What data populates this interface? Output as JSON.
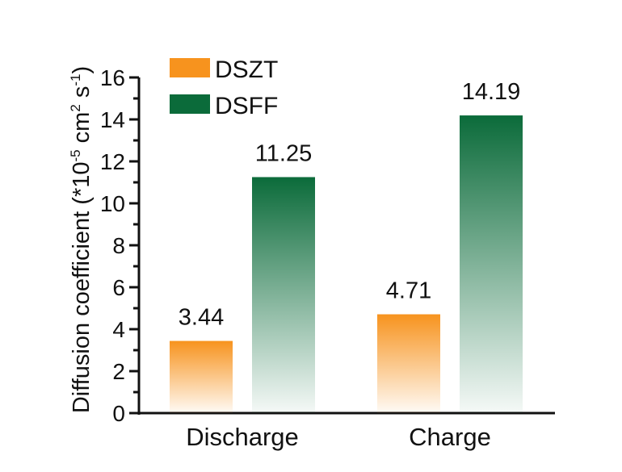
{
  "chart_data": {
    "type": "bar",
    "categories": [
      "Discharge",
      "Charge"
    ],
    "series": [
      {
        "name": "DSZT",
        "values": [
          3.44,
          4.71
        ],
        "color": "#f7931e"
      },
      {
        "name": "DSFF",
        "values": [
          11.25,
          14.19
        ],
        "color": "#0b6b3a"
      }
    ],
    "data_labels": [
      "3.44",
      "11.25",
      "4.71",
      "14.19"
    ],
    "ylabel": {
      "main": "Diffusion coefficient (*10",
      "exp1": "-5",
      "mid": " cm",
      "exp2": "2",
      "mid2": " s",
      "exp3": "-1",
      "end": ")"
    },
    "ylim": [
      0,
      16
    ],
    "yticks": [
      0,
      2,
      4,
      6,
      8,
      10,
      12,
      14,
      16
    ],
    "legend_position": "top-left",
    "grid": false,
    "bar_style": "vertical gradient fading to white at the base"
  }
}
